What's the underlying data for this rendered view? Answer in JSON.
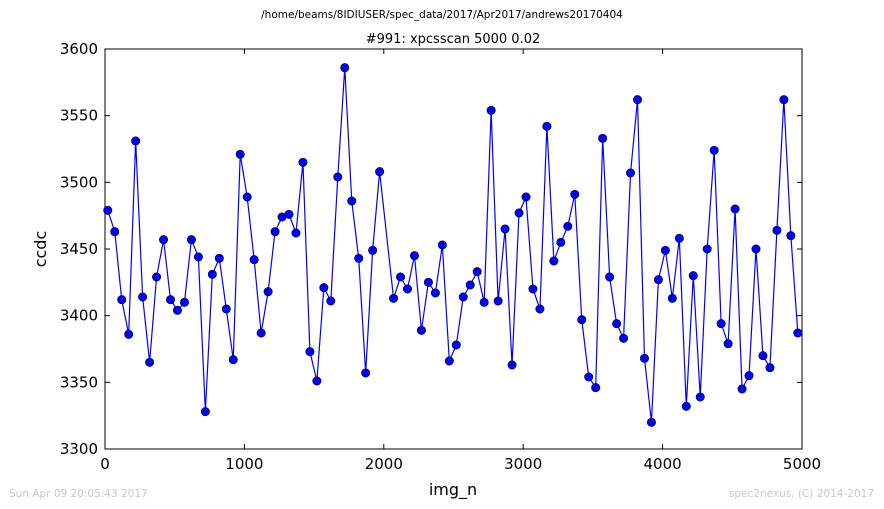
{
  "suptitle": "/home/beams/8IDIUSER/spec_data/2017/Apr2017/andrews20170404",
  "footer": {
    "timestamp": "Sun Apr 09 20:05:43 2017",
    "credit": "spec2nexus, (C) 2014-2017"
  },
  "chart_data": {
    "type": "line",
    "title": "#991: xpcsscan 5000 0.02",
    "xlabel": "img_n",
    "ylabel": "ccdc",
    "xlim": [
      0,
      5000
    ],
    "ylim": [
      3300,
      3600
    ],
    "xticks": [
      0,
      1000,
      2000,
      3000,
      4000,
      5000
    ],
    "yticks": [
      3300,
      3350,
      3400,
      3450,
      3500,
      3550,
      3600
    ],
    "grid": false,
    "marker": "circle",
    "color": "#0000ff",
    "x": [
      20,
      70,
      120,
      170,
      220,
      270,
      320,
      370,
      420,
      470,
      520,
      570,
      620,
      670,
      720,
      770,
      820,
      870,
      920,
      970,
      1020,
      1070,
      1120,
      1170,
      1220,
      1270,
      1320,
      1370,
      1420,
      1470,
      1520,
      1570,
      1620,
      1670,
      1720,
      1770,
      1820,
      1870,
      1920,
      1970,
      2070,
      2120,
      2170,
      2220,
      2270,
      2320,
      2370,
      2420,
      2470,
      2520,
      2570,
      2620,
      2670,
      2720,
      2770,
      2820,
      2870,
      2920,
      2970,
      3020,
      3070,
      3120,
      3170,
      3220,
      3270,
      3320,
      3370,
      3420,
      3470,
      3520,
      3570,
      3620,
      3670,
      3720,
      3770,
      3820,
      3870,
      3920,
      3970,
      4020,
      4070,
      4120,
      4170,
      4220,
      4270,
      4320,
      4370,
      4420,
      4470,
      4520,
      4570,
      4620,
      4670,
      4720,
      4770,
      4820,
      4870,
      4920,
      4970
    ],
    "y": [
      3479,
      3463,
      3412,
      3386,
      3531,
      3414,
      3365,
      3429,
      3457,
      3412,
      3404,
      3410,
      3457,
      3444,
      3328,
      3431,
      3443,
      3405,
      3367,
      3521,
      3489,
      3442,
      3387,
      3418,
      3463,
      3474,
      3476,
      3462,
      3515,
      3373,
      3351,
      3421,
      3411,
      3504,
      3586,
      3486,
      3443,
      3357,
      3449,
      3508,
      3413,
      3429,
      3420,
      3445,
      3389,
      3425,
      3417,
      3453,
      3366,
      3378,
      3414,
      3423,
      3433,
      3410,
      3554,
      3411,
      3465,
      3363,
      3477,
      3489,
      3420,
      3405,
      3542,
      3441,
      3455,
      3467,
      3491,
      3397,
      3354,
      3346,
      3533,
      3429,
      3394,
      3383,
      3507,
      3562,
      3368,
      3320,
      3427,
      3449,
      3413,
      3458,
      3332,
      3430,
      3339,
      3450,
      3524,
      3394,
      3379,
      3480,
      3345,
      3355,
      3450,
      3370,
      3361,
      3464,
      3562,
      3460,
      3387
    ]
  }
}
